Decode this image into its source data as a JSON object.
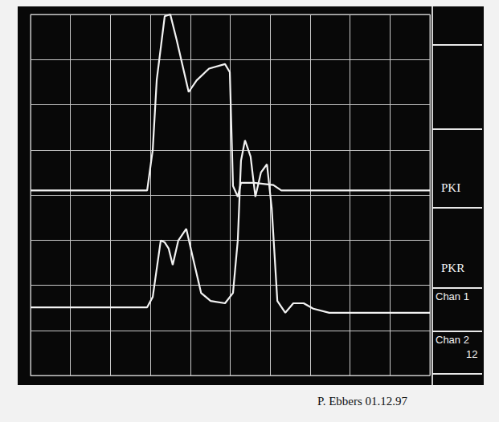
{
  "chart_data": {
    "type": "line",
    "xlim": [
      0,
      10
    ],
    "ylim": [
      0,
      8
    ],
    "xticks": [
      0,
      1,
      2,
      3,
      4,
      5,
      6,
      7,
      8,
      9,
      10
    ],
    "yticks": [
      0,
      1,
      2,
      3,
      4,
      5,
      6,
      7,
      8
    ],
    "grid": true,
    "tick_labels": false,
    "series": [
      {
        "name": "PKI",
        "color": "#f2f2f2",
        "x": [
          0,
          1,
          2,
          2.92,
          3.06,
          3.16,
          3.36,
          3.5,
          3.66,
          3.96,
          4.16,
          4.47,
          4.87,
          4.99,
          5.07,
          5.19,
          5.27,
          5.6,
          6.08,
          6.28,
          7,
          8,
          9,
          10
        ],
        "values": [
          4.1,
          4.1,
          4.1,
          4.1,
          5.0,
          6.55,
          7.96,
          8.0,
          7.43,
          6.28,
          6.54,
          6.8,
          6.9,
          6.72,
          4.2,
          3.96,
          4.27,
          4.27,
          4.22,
          4.1,
          4.1,
          4.1,
          4.1,
          4.1
        ]
      },
      {
        "name": "PKR",
        "color": "#f2f2f2",
        "x": [
          0,
          1,
          2,
          2.92,
          3.06,
          3.26,
          3.36,
          3.46,
          3.56,
          3.7,
          3.9,
          4.06,
          4.27,
          4.51,
          4.87,
          5.07,
          5.19,
          5.27,
          5.37,
          5.51,
          5.63,
          5.77,
          5.92,
          6.04,
          6.18,
          6.38,
          6.58,
          6.84,
          7.08,
          7.48,
          8,
          9,
          10
        ],
        "values": [
          1.51,
          1.51,
          1.51,
          1.51,
          1.74,
          2.99,
          2.95,
          2.81,
          2.45,
          2.99,
          3.25,
          2.63,
          1.83,
          1.65,
          1.6,
          1.83,
          3.0,
          4.76,
          5.21,
          4.85,
          3.96,
          4.5,
          4.68,
          3.7,
          1.65,
          1.39,
          1.6,
          1.6,
          1.48,
          1.39,
          1.39,
          1.39,
          1.39
        ]
      }
    ],
    "annotations": [
      "Chan 1",
      "Chan 2",
      "12"
    ],
    "caption": "P. Ebbers 01.12.97"
  }
}
